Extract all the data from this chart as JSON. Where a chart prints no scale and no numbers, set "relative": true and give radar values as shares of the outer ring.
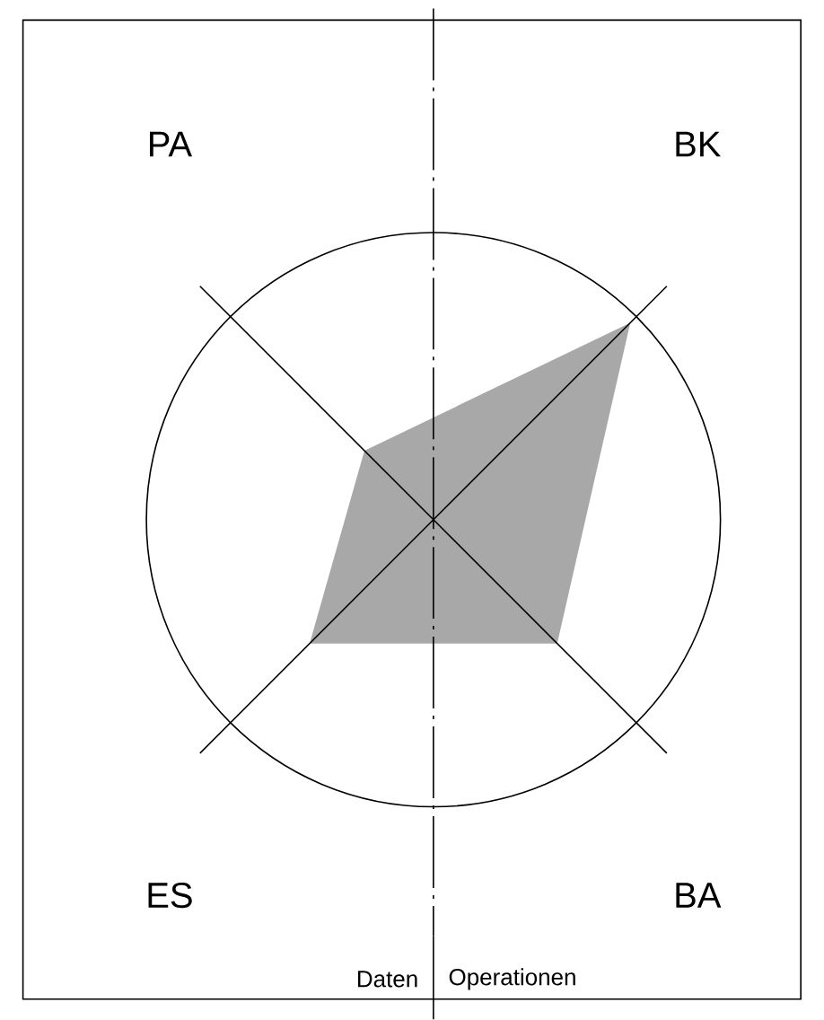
{
  "chart_data": {
    "type": "radar",
    "relative": true,
    "categories": [
      "BK",
      "BA",
      "ES",
      "PA"
    ],
    "series": [
      {
        "color": "#a8a8a8",
        "values": [
          0.97,
          0.61,
          0.61,
          0.34
        ]
      }
    ],
    "annotations": [
      "Daten",
      "Operationen"
    ]
  }
}
